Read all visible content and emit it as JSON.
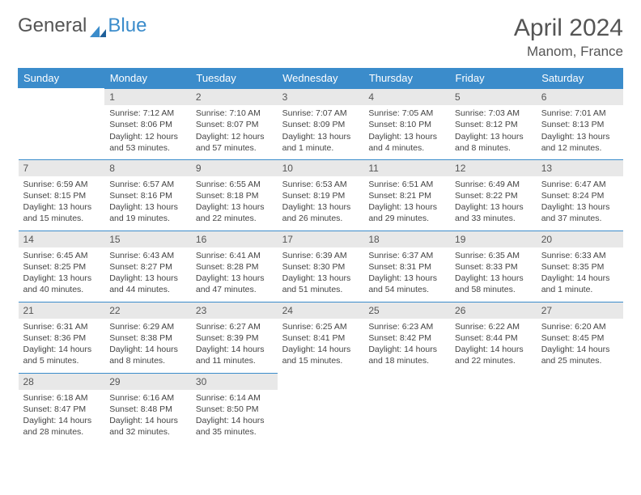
{
  "brand": {
    "part1": "General",
    "part2": "Blue"
  },
  "title": "April 2024",
  "location": "Manom, France",
  "header_bg": "#3b8ccb",
  "header_fg": "#ffffff",
  "daynum_bg": "#e8e8e8",
  "divider_color": "#3b8ccb",
  "text_color": "#444444",
  "weekdays": [
    "Sunday",
    "Monday",
    "Tuesday",
    "Wednesday",
    "Thursday",
    "Friday",
    "Saturday"
  ],
  "weeks": [
    [
      {
        "n": "",
        "sr": "",
        "ss": "",
        "dl": ""
      },
      {
        "n": "1",
        "sr": "Sunrise: 7:12 AM",
        "ss": "Sunset: 8:06 PM",
        "dl": "Daylight: 12 hours and 53 minutes."
      },
      {
        "n": "2",
        "sr": "Sunrise: 7:10 AM",
        "ss": "Sunset: 8:07 PM",
        "dl": "Daylight: 12 hours and 57 minutes."
      },
      {
        "n": "3",
        "sr": "Sunrise: 7:07 AM",
        "ss": "Sunset: 8:09 PM",
        "dl": "Daylight: 13 hours and 1 minute."
      },
      {
        "n": "4",
        "sr": "Sunrise: 7:05 AM",
        "ss": "Sunset: 8:10 PM",
        "dl": "Daylight: 13 hours and 4 minutes."
      },
      {
        "n": "5",
        "sr": "Sunrise: 7:03 AM",
        "ss": "Sunset: 8:12 PM",
        "dl": "Daylight: 13 hours and 8 minutes."
      },
      {
        "n": "6",
        "sr": "Sunrise: 7:01 AM",
        "ss": "Sunset: 8:13 PM",
        "dl": "Daylight: 13 hours and 12 minutes."
      }
    ],
    [
      {
        "n": "7",
        "sr": "Sunrise: 6:59 AM",
        "ss": "Sunset: 8:15 PM",
        "dl": "Daylight: 13 hours and 15 minutes."
      },
      {
        "n": "8",
        "sr": "Sunrise: 6:57 AM",
        "ss": "Sunset: 8:16 PM",
        "dl": "Daylight: 13 hours and 19 minutes."
      },
      {
        "n": "9",
        "sr": "Sunrise: 6:55 AM",
        "ss": "Sunset: 8:18 PM",
        "dl": "Daylight: 13 hours and 22 minutes."
      },
      {
        "n": "10",
        "sr": "Sunrise: 6:53 AM",
        "ss": "Sunset: 8:19 PM",
        "dl": "Daylight: 13 hours and 26 minutes."
      },
      {
        "n": "11",
        "sr": "Sunrise: 6:51 AM",
        "ss": "Sunset: 8:21 PM",
        "dl": "Daylight: 13 hours and 29 minutes."
      },
      {
        "n": "12",
        "sr": "Sunrise: 6:49 AM",
        "ss": "Sunset: 8:22 PM",
        "dl": "Daylight: 13 hours and 33 minutes."
      },
      {
        "n": "13",
        "sr": "Sunrise: 6:47 AM",
        "ss": "Sunset: 8:24 PM",
        "dl": "Daylight: 13 hours and 37 minutes."
      }
    ],
    [
      {
        "n": "14",
        "sr": "Sunrise: 6:45 AM",
        "ss": "Sunset: 8:25 PM",
        "dl": "Daylight: 13 hours and 40 minutes."
      },
      {
        "n": "15",
        "sr": "Sunrise: 6:43 AM",
        "ss": "Sunset: 8:27 PM",
        "dl": "Daylight: 13 hours and 44 minutes."
      },
      {
        "n": "16",
        "sr": "Sunrise: 6:41 AM",
        "ss": "Sunset: 8:28 PM",
        "dl": "Daylight: 13 hours and 47 minutes."
      },
      {
        "n": "17",
        "sr": "Sunrise: 6:39 AM",
        "ss": "Sunset: 8:30 PM",
        "dl": "Daylight: 13 hours and 51 minutes."
      },
      {
        "n": "18",
        "sr": "Sunrise: 6:37 AM",
        "ss": "Sunset: 8:31 PM",
        "dl": "Daylight: 13 hours and 54 minutes."
      },
      {
        "n": "19",
        "sr": "Sunrise: 6:35 AM",
        "ss": "Sunset: 8:33 PM",
        "dl": "Daylight: 13 hours and 58 minutes."
      },
      {
        "n": "20",
        "sr": "Sunrise: 6:33 AM",
        "ss": "Sunset: 8:35 PM",
        "dl": "Daylight: 14 hours and 1 minute."
      }
    ],
    [
      {
        "n": "21",
        "sr": "Sunrise: 6:31 AM",
        "ss": "Sunset: 8:36 PM",
        "dl": "Daylight: 14 hours and 5 minutes."
      },
      {
        "n": "22",
        "sr": "Sunrise: 6:29 AM",
        "ss": "Sunset: 8:38 PM",
        "dl": "Daylight: 14 hours and 8 minutes."
      },
      {
        "n": "23",
        "sr": "Sunrise: 6:27 AM",
        "ss": "Sunset: 8:39 PM",
        "dl": "Daylight: 14 hours and 11 minutes."
      },
      {
        "n": "24",
        "sr": "Sunrise: 6:25 AM",
        "ss": "Sunset: 8:41 PM",
        "dl": "Daylight: 14 hours and 15 minutes."
      },
      {
        "n": "25",
        "sr": "Sunrise: 6:23 AM",
        "ss": "Sunset: 8:42 PM",
        "dl": "Daylight: 14 hours and 18 minutes."
      },
      {
        "n": "26",
        "sr": "Sunrise: 6:22 AM",
        "ss": "Sunset: 8:44 PM",
        "dl": "Daylight: 14 hours and 22 minutes."
      },
      {
        "n": "27",
        "sr": "Sunrise: 6:20 AM",
        "ss": "Sunset: 8:45 PM",
        "dl": "Daylight: 14 hours and 25 minutes."
      }
    ],
    [
      {
        "n": "28",
        "sr": "Sunrise: 6:18 AM",
        "ss": "Sunset: 8:47 PM",
        "dl": "Daylight: 14 hours and 28 minutes."
      },
      {
        "n": "29",
        "sr": "Sunrise: 6:16 AM",
        "ss": "Sunset: 8:48 PM",
        "dl": "Daylight: 14 hours and 32 minutes."
      },
      {
        "n": "30",
        "sr": "Sunrise: 6:14 AM",
        "ss": "Sunset: 8:50 PM",
        "dl": "Daylight: 14 hours and 35 minutes."
      },
      {
        "n": "",
        "sr": "",
        "ss": "",
        "dl": ""
      },
      {
        "n": "",
        "sr": "",
        "ss": "",
        "dl": ""
      },
      {
        "n": "",
        "sr": "",
        "ss": "",
        "dl": ""
      },
      {
        "n": "",
        "sr": "",
        "ss": "",
        "dl": ""
      }
    ]
  ]
}
